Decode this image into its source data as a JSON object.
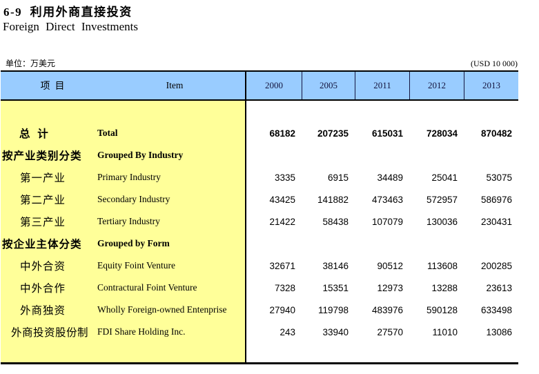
{
  "page": {
    "title_cn": "6-9  利用外商直接投资",
    "title_en": "Foreign  Direct  Investments",
    "unit_cn": "单位：万美元",
    "unit_en": "(USD 10 000)"
  },
  "colors": {
    "header_bg": "#99CCFF",
    "label_bg": "#FFFF99",
    "border": "#000000"
  },
  "table": {
    "header": {
      "item_cn": "项  目",
      "item_en": "Item",
      "years": [
        "2000",
        "2005",
        "2011",
        "2012",
        "2013"
      ]
    },
    "rows": [
      {
        "cn": "总  计",
        "en": "Total",
        "values": [
          "68182",
          "207235",
          "615031",
          "728034",
          "870482"
        ]
      },
      {
        "cn": "按产业类别分类",
        "en": "Grouped By Industry",
        "values": [
          "",
          "",
          "",
          "",
          ""
        ]
      },
      {
        "cn": "第一产业",
        "en": "Primary Industry",
        "values": [
          "3335",
          "6915",
          "34489",
          "25041",
          "53075"
        ]
      },
      {
        "cn": "第二产业",
        "en": "Secondary Industry",
        "values": [
          "43425",
          "141882",
          "473463",
          "572957",
          "586976"
        ]
      },
      {
        "cn": "第三产业",
        "en": "Tertiary Industry",
        "values": [
          "21422",
          "58438",
          "107079",
          "130036",
          "230431"
        ]
      },
      {
        "cn": "按企业主体分类",
        "en": "Grouped by Form",
        "values": [
          "",
          "",
          "",
          "",
          ""
        ]
      },
      {
        "cn": "中外合资",
        "en": "Equity Foint Venture",
        "values": [
          "32671",
          "38146",
          "90512",
          "113608",
          "200285"
        ]
      },
      {
        "cn": "中外合作",
        "en": "Contractural Foint Venture",
        "values": [
          "7328",
          "15351",
          "12973",
          "13288",
          "23613"
        ]
      },
      {
        "cn": "外商独资",
        "en": "Wholly Foreign-owned Entenprise",
        "values": [
          "27940",
          "119798",
          "483976",
          "590128",
          "633498"
        ]
      },
      {
        "cn": "外商投资股份制",
        "en": "FDI Share Holding Inc.",
        "values": [
          "243",
          "33940",
          "27570",
          "11010",
          "13086"
        ]
      }
    ]
  }
}
